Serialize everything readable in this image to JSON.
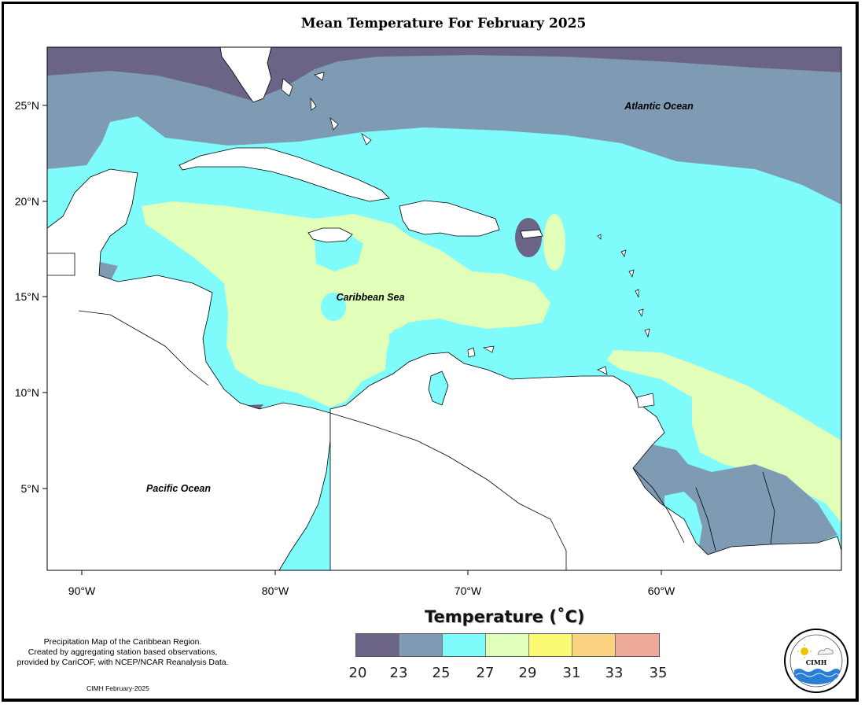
{
  "title": "Mean Temperature For February 2025",
  "axes": {
    "lon_labels": [
      "90°W",
      "80°W",
      "70°W",
      "60°W"
    ],
    "lat_labels": [
      "25°N",
      "20°N",
      "15°N",
      "10°N",
      "5°N"
    ]
  },
  "places": {
    "atlantic": "Atlantic Ocean",
    "caribbean": "Caribbean Sea",
    "pacific": "Pacific Ocean"
  },
  "legend": {
    "title": "Temperature (˚C)",
    "ticks": [
      "20",
      "23",
      "25",
      "27",
      "29",
      "31",
      "33",
      "35"
    ],
    "colors": [
      "#6b6486",
      "#7f9ab3",
      "#7ffbfb",
      "#e1ffb8",
      "#fbfb73",
      "#fbd27f",
      "#eeaa99"
    ]
  },
  "notes": {
    "line1": "Precipitation Map of the Caribbean Region.",
    "line2": "Created by aggregating station based observations,",
    "line3": "provided by CariCOF, with NCEP/NCAR Reanalysis Data.",
    "credit": "CIMH February-2025"
  },
  "logo": {
    "abbr": "CIMH"
  },
  "colors": {
    "land": "#ffffff",
    "coast": "#000000"
  }
}
